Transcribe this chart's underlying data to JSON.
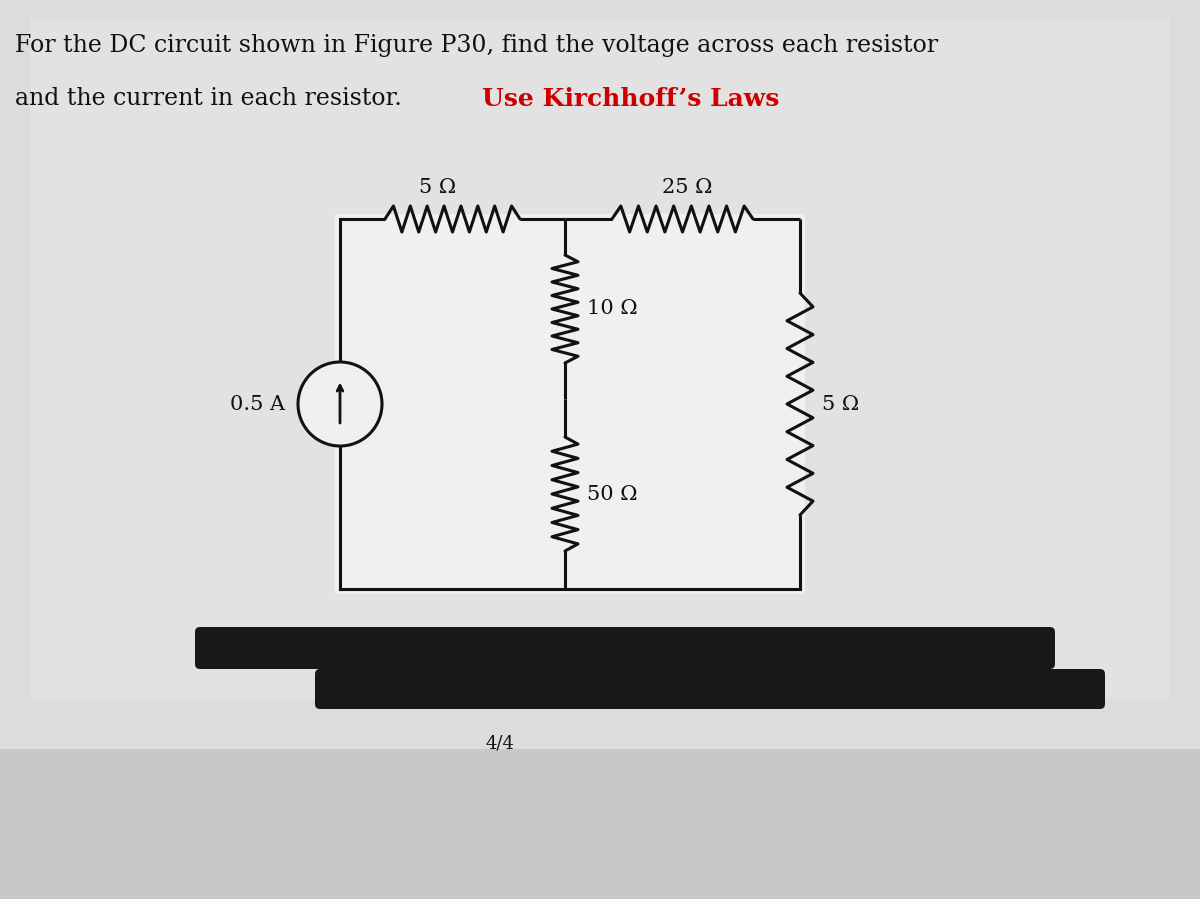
{
  "bg_color": "#c8c8c8",
  "panel_color": "#e8e8e8",
  "text_color": "#111111",
  "circuit_color": "#111111",
  "title_line1": "For the DC circuit shown in Figure P30, find the voltage across each resistor",
  "title_line2": "and the current in each resistor.",
  "kirchhoff_text": "Use Kirchhoff’s Laws",
  "kirchhoff_color": "#cc0000",
  "page_label": "4/4",
  "R1_label": "5 Ω",
  "R2_label": "25 Ω",
  "R3_label": "10 Ω",
  "R4_label": "50 Ω",
  "R5_label": "5 Ω",
  "source_label": "0.5 A",
  "title_fontsize": 17,
  "kirchhoff_fontsize": 18,
  "label_fontsize": 15
}
